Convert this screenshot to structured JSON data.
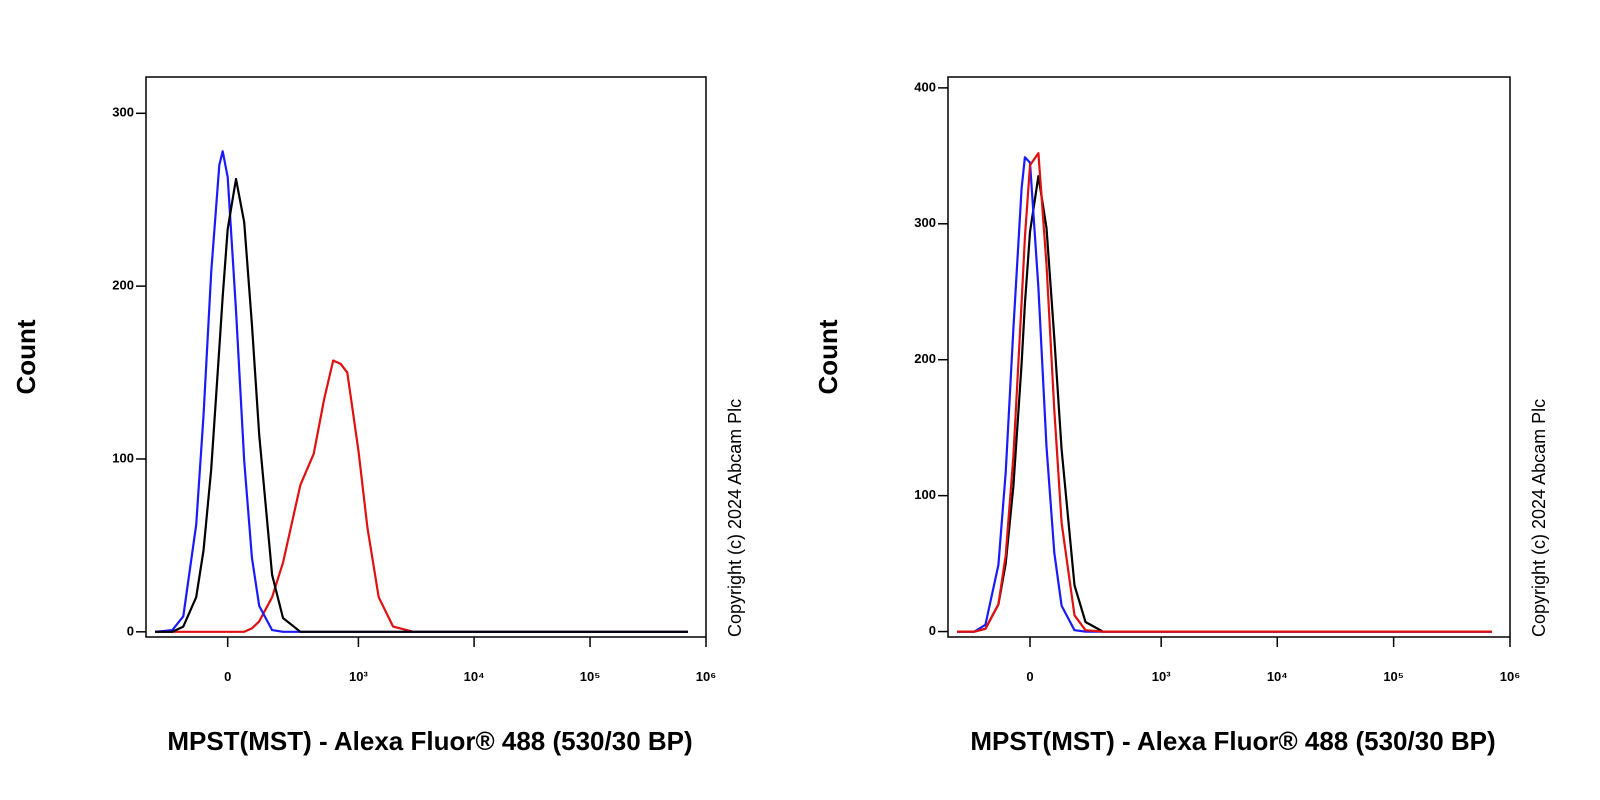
{
  "chart_data": [
    {
      "type": "line",
      "y_label": "Count",
      "x_label": "MPST(MST) - Alexa Fluor® 488 (530/30 BP)",
      "annotation": "Copyright (c) 2024 Abcam Plc",
      "xscale": "biexponential",
      "x": [
        -300,
        -200,
        -150,
        -100,
        -75,
        -50,
        -25,
        -15,
        0,
        25,
        50,
        75,
        100,
        150,
        200,
        300,
        400,
        500,
        600,
        700,
        800,
        1000,
        1200,
        1500,
        2000,
        3000,
        10000,
        700000
      ],
      "series": [
        {
          "color": "#e01010",
          "values": [
            0,
            0,
            0,
            0,
            0,
            0,
            0,
            0,
            0,
            0,
            0,
            2,
            6,
            20,
            40,
            85,
            103,
            135,
            157,
            155,
            150,
            105,
            60,
            20,
            3,
            0,
            0,
            0
          ]
        },
        {
          "color": "#1a1aff",
          "values": [
            0,
            1,
            9,
            62,
            125,
            208,
            270,
            278,
            263,
            186,
            99,
            43,
            15,
            1,
            0,
            0,
            0,
            0,
            0,
            0,
            0,
            0,
            0,
            0,
            0,
            0,
            0,
            0
          ]
        },
        {
          "color": "#000000",
          "values": [
            0,
            0,
            3,
            20,
            47,
            94,
            164,
            194,
            233,
            262,
            237,
            178,
            114,
            33,
            8,
            0,
            0,
            0,
            0,
            0,
            0,
            0,
            0,
            0,
            0,
            0,
            0,
            0
          ]
        }
      ],
      "xlim": [
        -365,
        1000000
      ],
      "xticks": [
        0,
        {
          "value": 1000,
          "label": "10³"
        },
        {
          "value": 10000,
          "label": "10⁴"
        },
        {
          "value": 100000,
          "label": "10⁵"
        },
        {
          "value": 1000000,
          "label": "10⁶"
        }
      ],
      "ylim": [
        -3,
        321
      ],
      "yticks": [
        0,
        100,
        200,
        300
      ]
    },
    {
      "type": "line",
      "y_label": "Count",
      "x_label": "MPST(MST) - Alexa Fluor® 488 (530/30 BP)",
      "annotation": "Copyright (c) 2024 Abcam Plc",
      "xscale": "biexponential",
      "x": [
        -300,
        -200,
        -150,
        -100,
        -75,
        -50,
        -25,
        -15,
        0,
        25,
        50,
        75,
        100,
        150,
        200,
        300,
        400,
        500,
        600,
        700,
        800,
        1000,
        1200,
        1500,
        2000,
        3000,
        10000,
        700000
      ],
      "series": [
        {
          "color": "#000000",
          "values": [
            0,
            0,
            2,
            20,
            50,
            107,
            197,
            241,
            294,
            335,
            297,
            216,
            134,
            34,
            7,
            0,
            0,
            0,
            0,
            0,
            0,
            0,
            0,
            0,
            0,
            0,
            0,
            0
          ]
        },
        {
          "color": "#1a1aff",
          "values": [
            0,
            0,
            5,
            49,
            117,
            223,
            326,
            349,
            345,
            253,
            136,
            58,
            19,
            1,
            0,
            0,
            0,
            0,
            0,
            0,
            0,
            0,
            0,
            0,
            0,
            0,
            0,
            0
          ]
        },
        {
          "color": "#e01010",
          "values": [
            0,
            0,
            2,
            20,
            56,
            129,
            242,
            290,
            343,
            352,
            270,
            163,
            80,
            12,
            1,
            0,
            0,
            0,
            0,
            0,
            0,
            0,
            0,
            0,
            0,
            0,
            0,
            0
          ]
        }
      ],
      "xlim": [
        -365,
        1000000
      ],
      "xticks": [
        0,
        {
          "value": 1000,
          "label": "10³"
        },
        {
          "value": 10000,
          "label": "10⁴"
        },
        {
          "value": 100000,
          "label": "10⁵"
        },
        {
          "value": 1000000,
          "label": "10⁶"
        }
      ],
      "ylim": [
        -4,
        408
      ],
      "yticks": [
        0,
        100,
        200,
        300,
        400
      ]
    }
  ]
}
